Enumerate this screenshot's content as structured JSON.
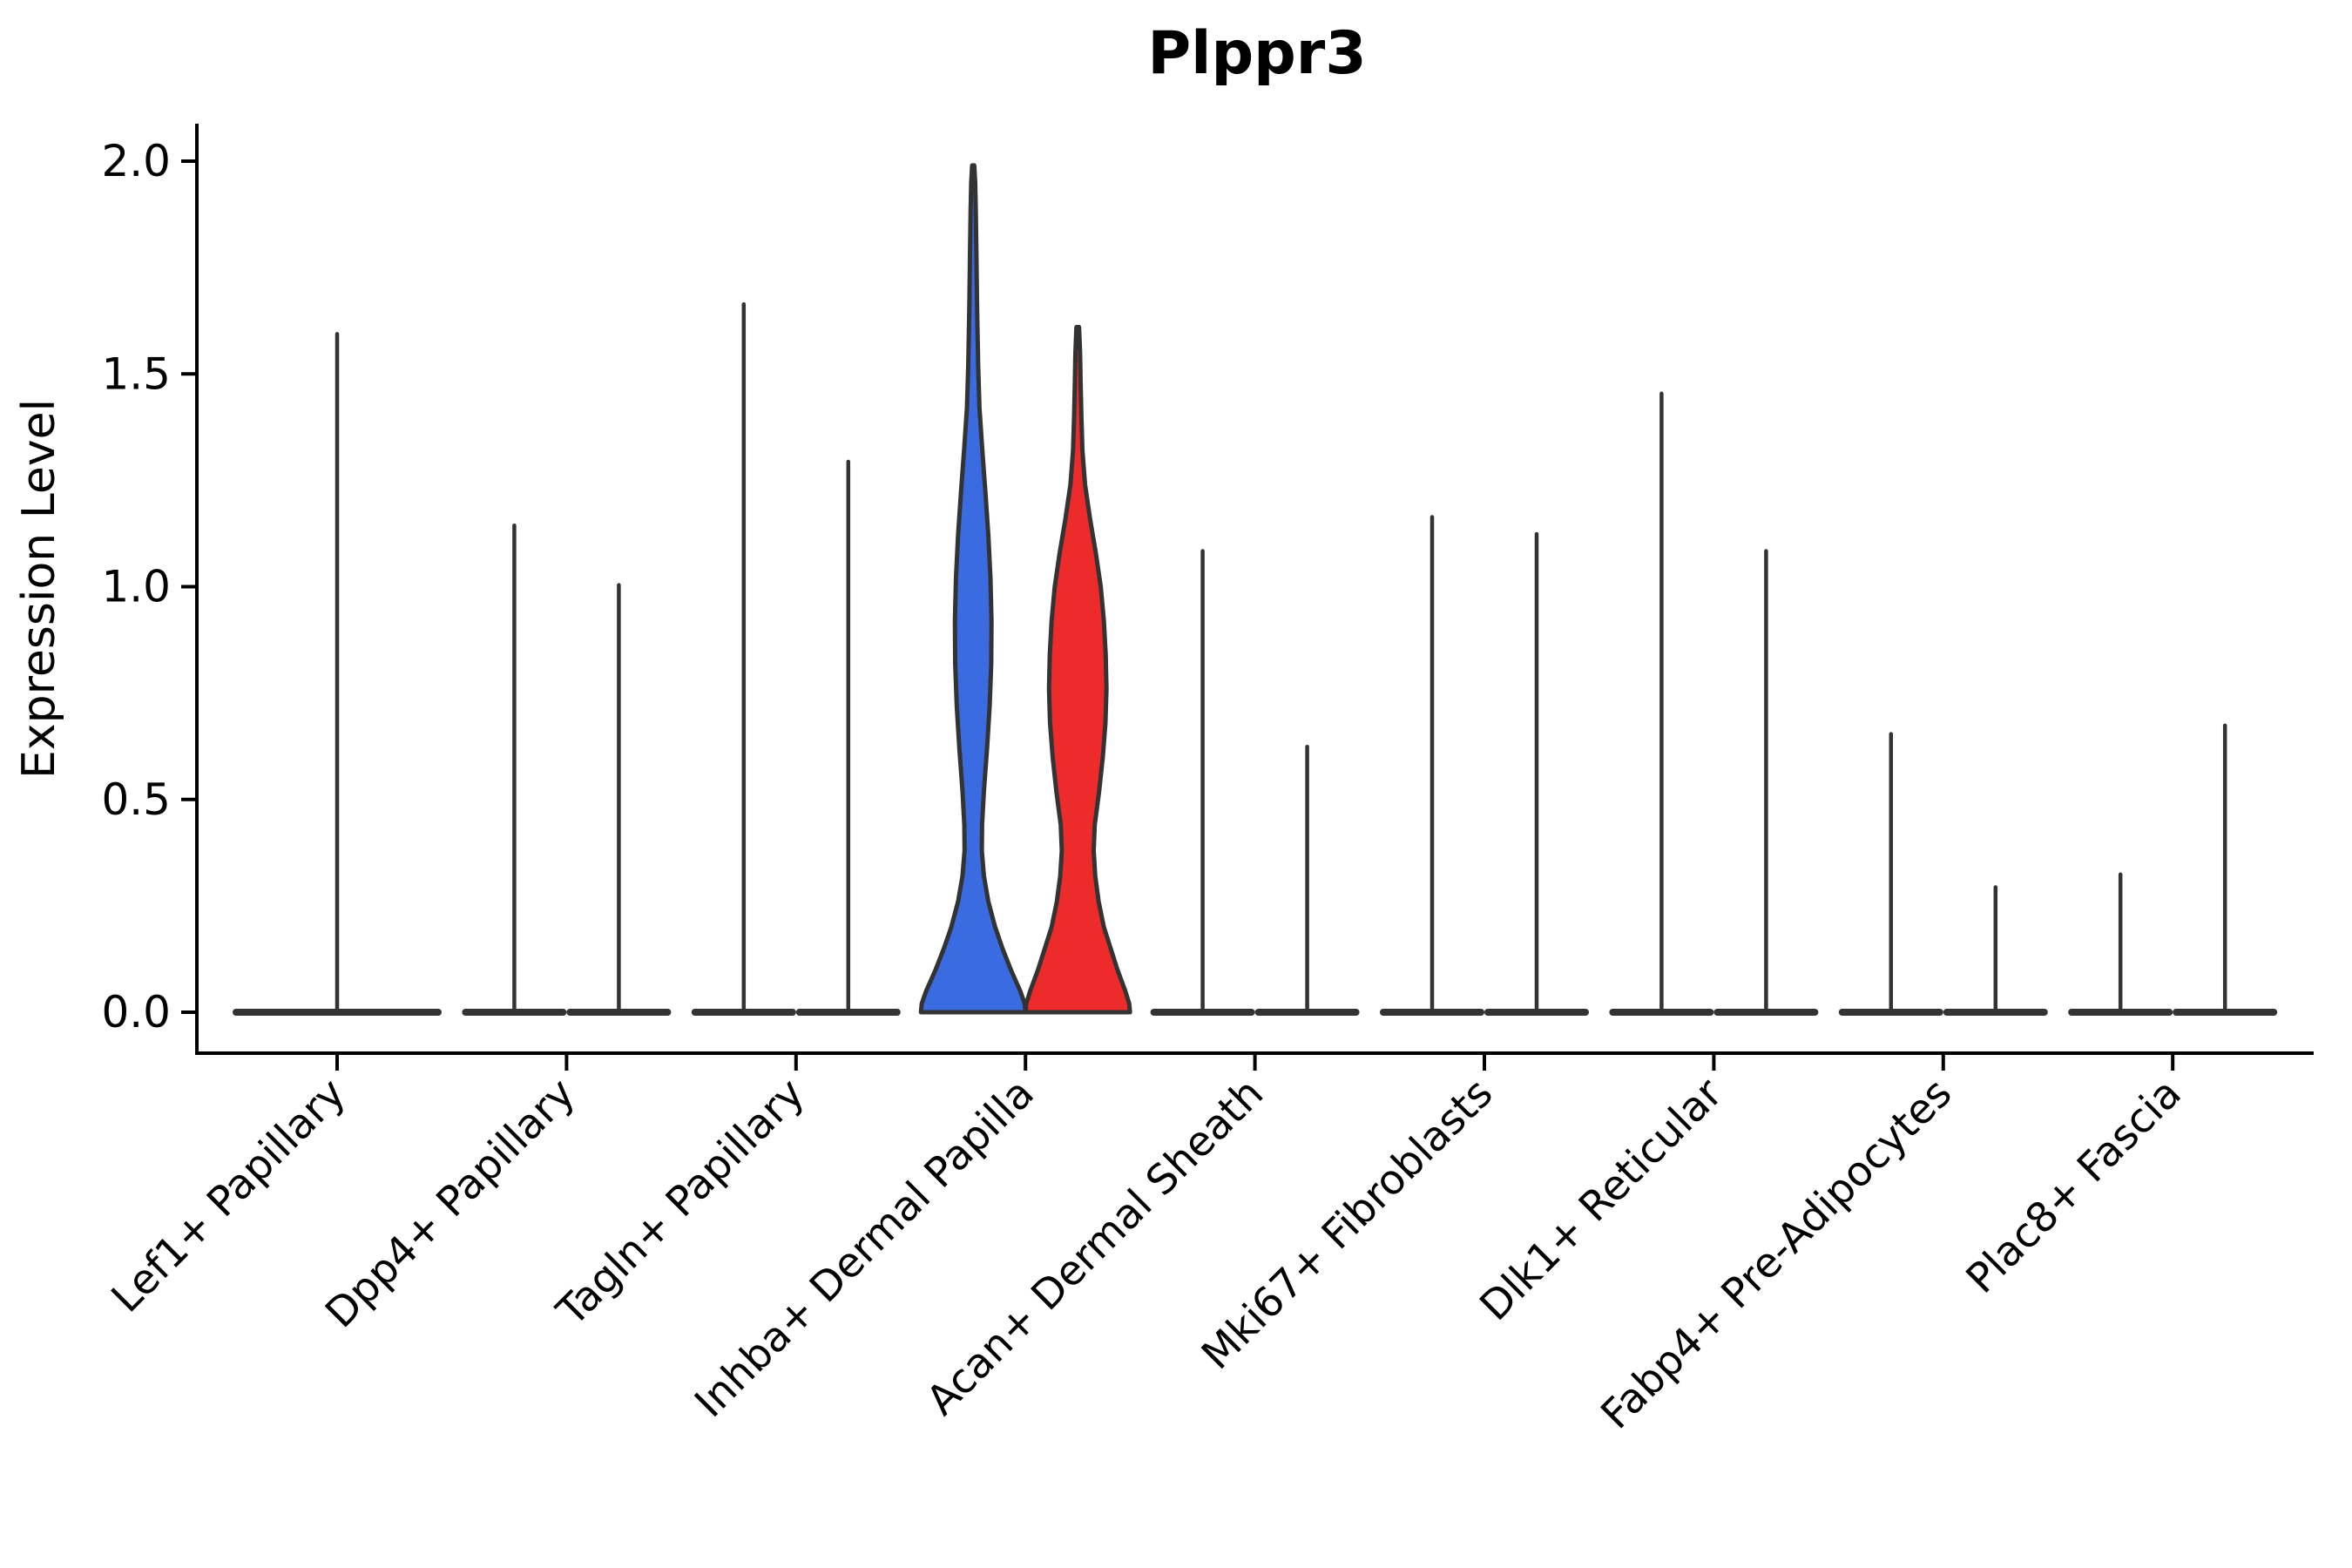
{
  "chart_data": {
    "type": "violin",
    "title": "Plppr3",
    "ylabel": "Expression Level",
    "xlabel": "",
    "ylim": [
      0.0,
      2.09
    ],
    "grid": false,
    "legend": null,
    "ytick_labels": [
      "0.0",
      "0.5",
      "1.0",
      "1.5",
      "2.0"
    ],
    "ytick_values": [
      0.0,
      0.5,
      1.0,
      1.5,
      2.0
    ],
    "categories": [
      "Lef1+ Papillary",
      "Dpp4+ Papillary",
      "Tagln+ Papillary",
      "Inhba+ Dermal Papilla",
      "Acan+ Dermal Sheath",
      "Mki67+ Fibroblasts",
      "Dlk1+ Reticular",
      "Fabp4+ Pre-Adipocytes",
      "Plac8+ Fascia"
    ],
    "colors": {
      "violin_blue_fill": "#3a6be1",
      "violin_red_fill": "#ee2b2b",
      "violin_stroke": "#333333",
      "axis_color": "#000000"
    },
    "groups": [
      {
        "category": "Lef1+ Papillary",
        "violins": [
          {
            "side": "center",
            "shape": "spike",
            "max": 1.6
          }
        ]
      },
      {
        "category": "Dpp4+ Papillary",
        "violins": [
          {
            "side": "left",
            "shape": "spike",
            "max": 1.15
          },
          {
            "side": "right",
            "shape": "spike",
            "max": 1.01
          }
        ]
      },
      {
        "category": "Tagln+ Papillary",
        "violins": [
          {
            "side": "left",
            "shape": "spike",
            "max": 1.67
          },
          {
            "side": "right",
            "shape": "spike",
            "max": 1.3
          }
        ]
      },
      {
        "category": "Inhba+ Dermal Papilla",
        "violins": [
          {
            "side": "left",
            "shape": "kde",
            "max": 1.99,
            "fill": "#3a6be1",
            "profile": [
              [
                0.0,
                1.0
              ],
              [
                0.02,
                0.985
              ],
              [
                0.05,
                0.9
              ],
              [
                0.1,
                0.72
              ],
              [
                0.15,
                0.56
              ],
              [
                0.2,
                0.42
              ],
              [
                0.26,
                0.29
              ],
              [
                0.32,
                0.205
              ],
              [
                0.38,
                0.165
              ],
              [
                0.44,
                0.17
              ],
              [
                0.52,
                0.205
              ],
              [
                0.62,
                0.265
              ],
              [
                0.72,
                0.315
              ],
              [
                0.82,
                0.345
              ],
              [
                0.92,
                0.35
              ],
              [
                1.02,
                0.33
              ],
              [
                1.12,
                0.29
              ],
              [
                1.22,
                0.235
              ],
              [
                1.32,
                0.175
              ],
              [
                1.42,
                0.12
              ],
              [
                1.52,
                0.095
              ],
              [
                1.65,
                0.075
              ],
              [
                1.78,
                0.062
              ],
              [
                1.88,
                0.05
              ],
              [
                1.95,
                0.038
              ],
              [
                1.99,
                0.02
              ]
            ]
          },
          {
            "side": "right",
            "shape": "kde",
            "max": 1.61,
            "fill": "#ee2b2b",
            "profile": [
              [
                0.0,
                1.0
              ],
              [
                0.02,
                0.985
              ],
              [
                0.05,
                0.91
              ],
              [
                0.1,
                0.76
              ],
              [
                0.15,
                0.63
              ],
              [
                0.2,
                0.5
              ],
              [
                0.26,
                0.4
              ],
              [
                0.32,
                0.335
              ],
              [
                0.38,
                0.305
              ],
              [
                0.44,
                0.325
              ],
              [
                0.52,
                0.41
              ],
              [
                0.6,
                0.48
              ],
              [
                0.68,
                0.53
              ],
              [
                0.76,
                0.55
              ],
              [
                0.84,
                0.535
              ],
              [
                0.92,
                0.5
              ],
              [
                1.0,
                0.44
              ],
              [
                1.08,
                0.345
              ],
              [
                1.16,
                0.235
              ],
              [
                1.24,
                0.14
              ],
              [
                1.32,
                0.09
              ],
              [
                1.4,
                0.07
              ],
              [
                1.48,
                0.055
              ],
              [
                1.55,
                0.045
              ],
              [
                1.61,
                0.025
              ]
            ]
          }
        ]
      },
      {
        "category": "Acan+ Dermal Sheath",
        "violins": [
          {
            "side": "left",
            "shape": "spike",
            "max": 1.09
          },
          {
            "side": "right",
            "shape": "spike",
            "max": 0.63
          }
        ]
      },
      {
        "category": "Mki67+ Fibroblasts",
        "violins": [
          {
            "side": "left",
            "shape": "spike",
            "max": 1.17
          },
          {
            "side": "right",
            "shape": "spike",
            "max": 1.13
          }
        ]
      },
      {
        "category": "Dlk1+ Reticular",
        "violins": [
          {
            "side": "left",
            "shape": "spike",
            "max": 1.46
          },
          {
            "side": "right",
            "shape": "spike",
            "max": 1.09
          }
        ]
      },
      {
        "category": "Fabp4+ Pre-Adipocytes",
        "violins": [
          {
            "side": "left",
            "shape": "spike",
            "max": 0.66
          },
          {
            "side": "right",
            "shape": "spike",
            "max": 0.3
          }
        ]
      },
      {
        "category": "Plac8+ Fascia",
        "violins": [
          {
            "side": "left",
            "shape": "spike",
            "max": 0.33
          },
          {
            "side": "right",
            "shape": "spike",
            "max": 0.68
          }
        ]
      }
    ]
  }
}
